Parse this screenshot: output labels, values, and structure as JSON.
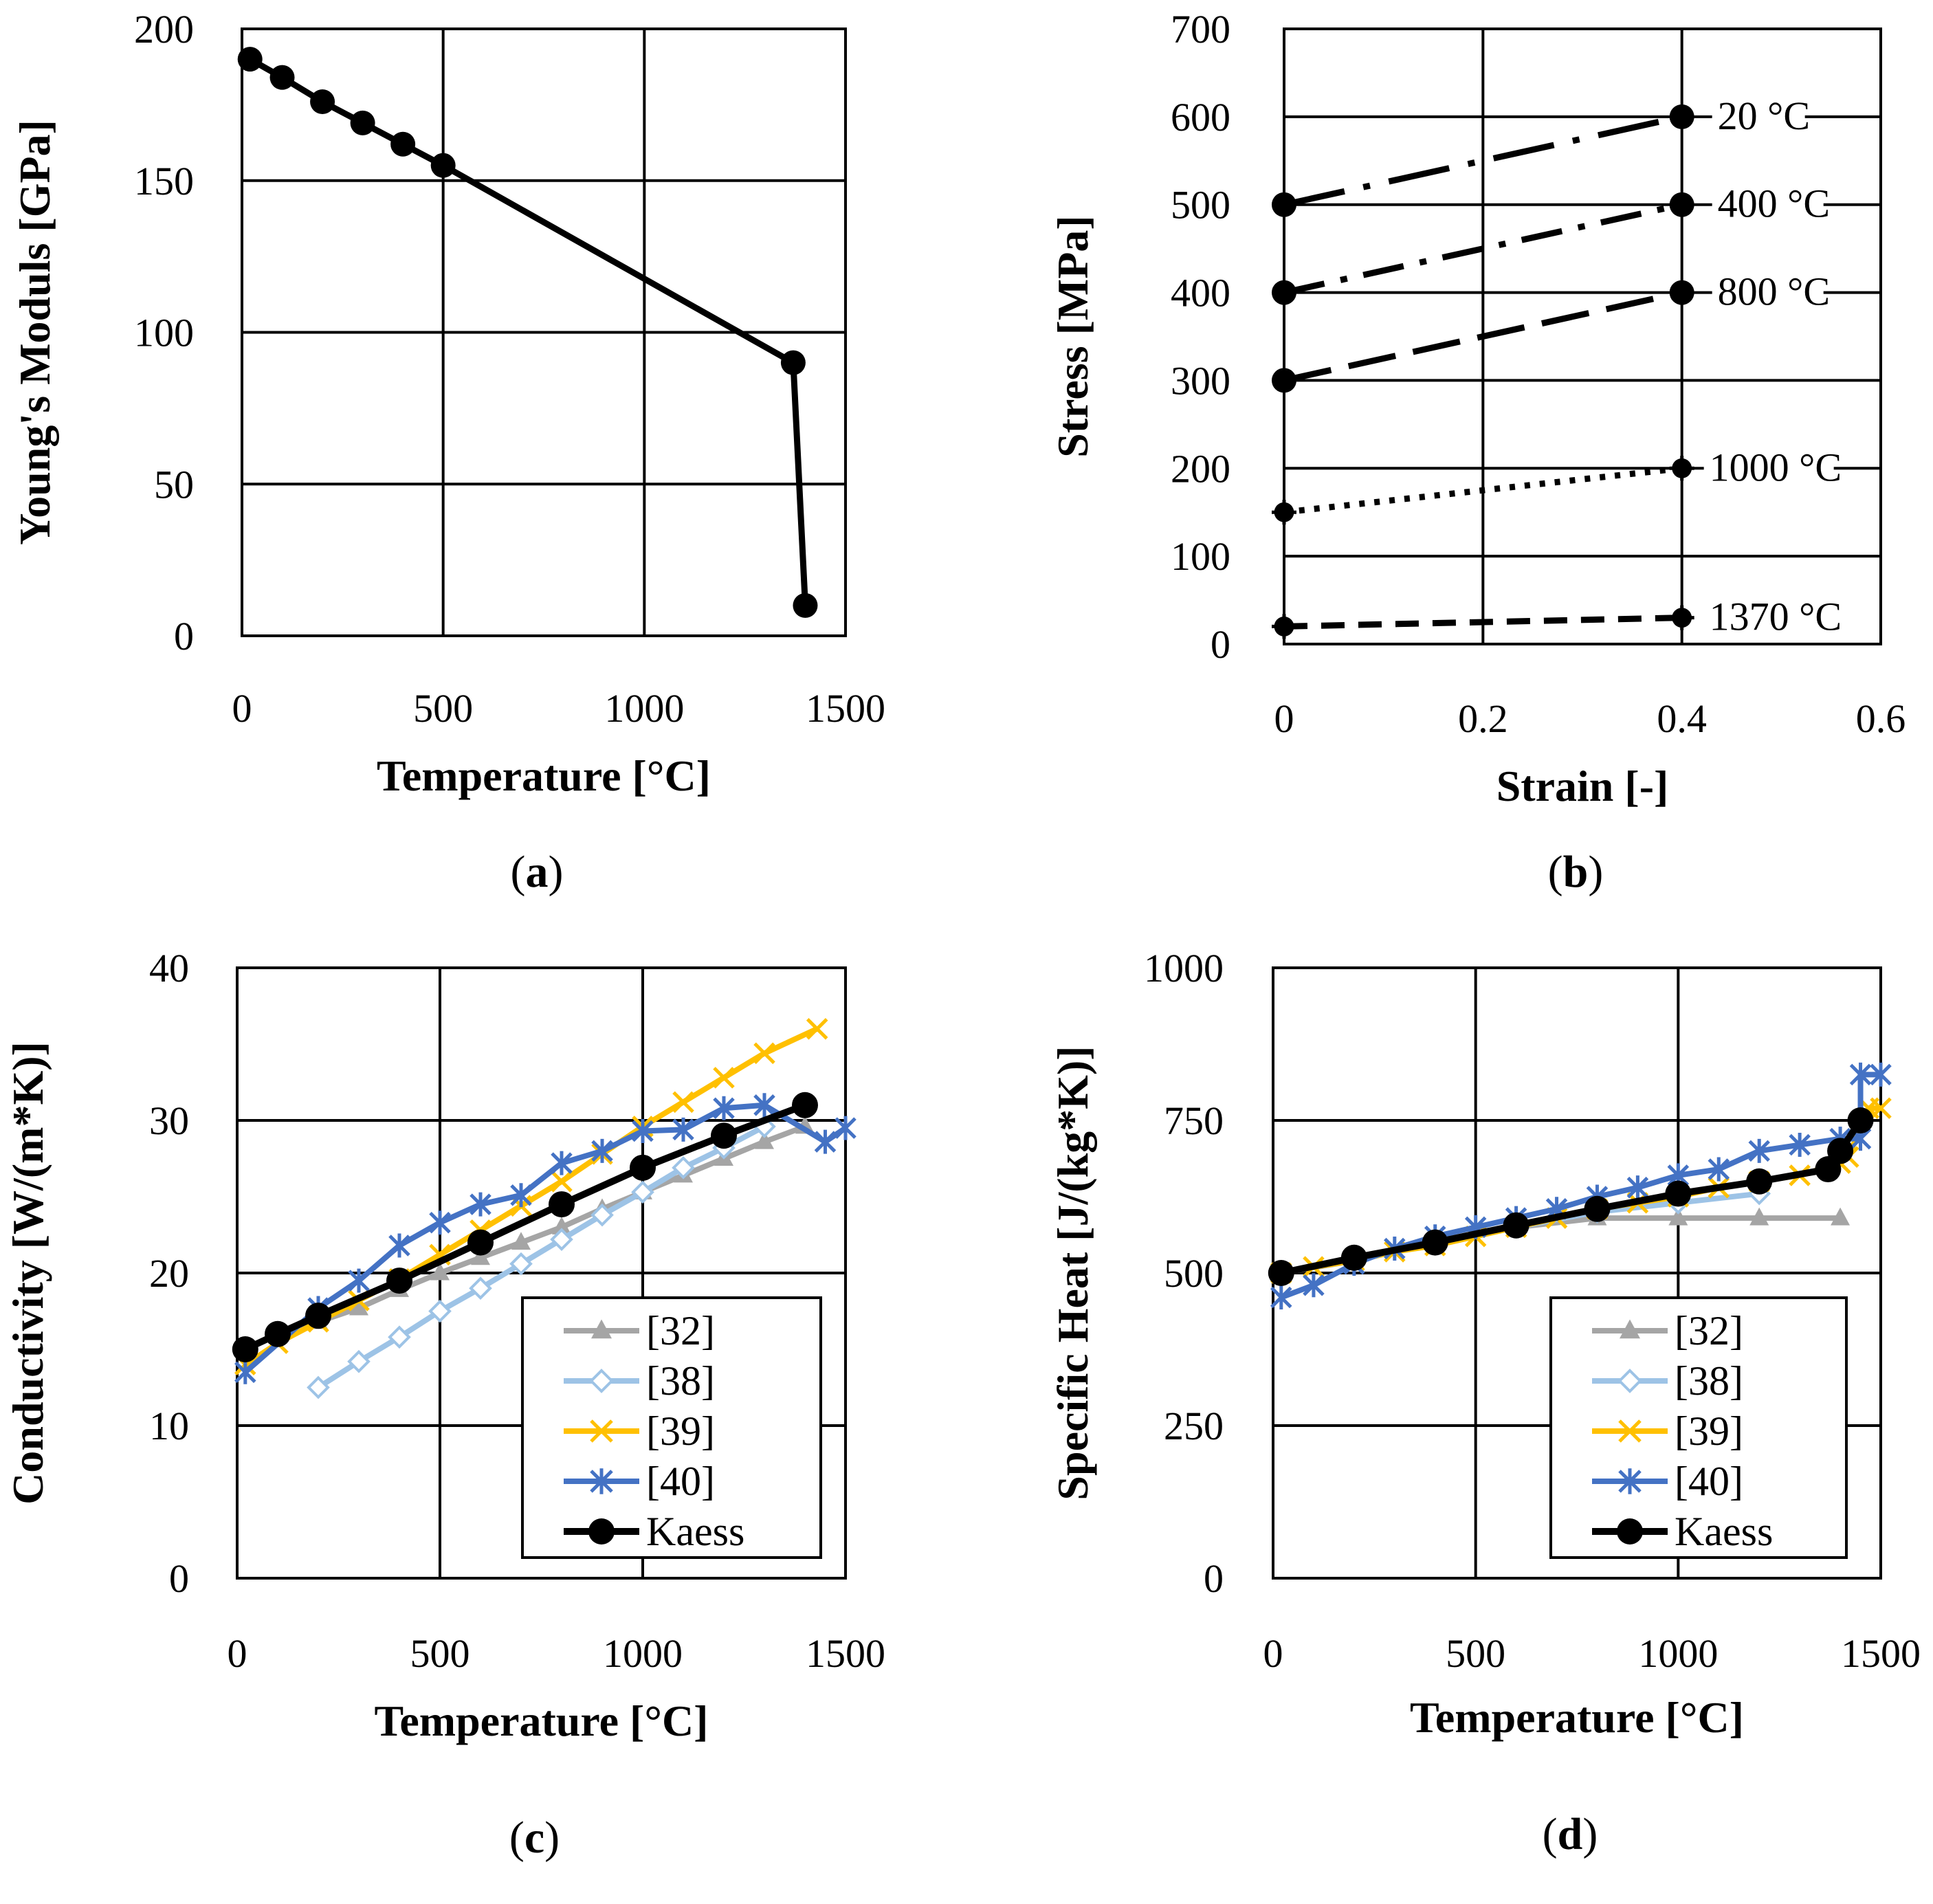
{
  "chart_data": [
    {
      "id": "a",
      "type": "line",
      "caption": "(a)",
      "caption_letter": "a",
      "xlabel": "Temperature [°C]",
      "ylabel": "Young's Moduls [GPa]",
      "xlim": [
        0,
        1500
      ],
      "ylim": [
        0,
        200
      ],
      "xticks": [
        0,
        500,
        1000,
        1500
      ],
      "yticks": [
        0,
        50,
        100,
        150,
        200
      ],
      "xtick_labels": [
        "0",
        "500",
        "1000",
        "1500"
      ],
      "ytick_labels": [
        "0",
        "50",
        "100",
        "150",
        "200"
      ],
      "grid": true,
      "legend_position": "none",
      "series": [
        {
          "name": "Young's modulus",
          "color": "#000000",
          "marker": "circle",
          "dash": "solid",
          "x": [
            20,
            100,
            200,
            300,
            400,
            500,
            1370,
            1400
          ],
          "y": [
            190,
            184,
            176,
            169,
            162,
            155,
            90,
            10
          ]
        }
      ]
    },
    {
      "id": "b",
      "type": "line",
      "caption": "(b)",
      "caption_letter": "b",
      "xlabel": "Strain [-]",
      "ylabel": "Stress [MPa]",
      "xlim": [
        0,
        0.6
      ],
      "ylim": [
        0,
        700
      ],
      "xticks": [
        0,
        0.2,
        0.4,
        0.6
      ],
      "yticks": [
        0,
        100,
        200,
        300,
        400,
        500,
        600,
        700
      ],
      "xtick_labels": [
        "0",
        "0.2",
        "0.4",
        "0.6"
      ],
      "ytick_labels": [
        "0",
        "100",
        "200",
        "300",
        "400",
        "500",
        "600",
        "700"
      ],
      "grid": true,
      "legend_position": "none",
      "series": [
        {
          "name": "20 °C",
          "label": "20 °C",
          "color": "#000000",
          "marker": "circle",
          "dash": "dashdot-long",
          "x": [
            0,
            0.4
          ],
          "y": [
            500,
            600
          ]
        },
        {
          "name": "400 °C",
          "label": "400 °C",
          "color": "#000000",
          "marker": "circle",
          "dash": "dashdot",
          "x": [
            0,
            0.4
          ],
          "y": [
            400,
            500
          ]
        },
        {
          "name": "800 °C",
          "label": "800 °C",
          "color": "#000000",
          "marker": "circle",
          "dash": "longdash",
          "x": [
            0,
            0.4
          ],
          "y": [
            300,
            400
          ]
        },
        {
          "name": "1000 °C",
          "label": "1000 °C",
          "color": "#000000",
          "marker": "cross",
          "dash": "dotted",
          "x": [
            0,
            0.4
          ],
          "y": [
            150,
            200
          ]
        },
        {
          "name": "1370 °C",
          "label": "1370 °C",
          "color": "#000000",
          "marker": "cross",
          "dash": "dashed",
          "x": [
            0,
            0.4
          ],
          "y": [
            20,
            30
          ]
        }
      ]
    },
    {
      "id": "c",
      "type": "line",
      "caption": "(c)",
      "caption_letter": "c",
      "xlabel": "Temperature [°C]",
      "ylabel": "Conductivity [W/(m*K)]",
      "xlim": [
        0,
        1500
      ],
      "ylim": [
        0,
        40
      ],
      "xticks": [
        0,
        500,
        1000,
        1500
      ],
      "yticks": [
        0,
        10,
        20,
        30,
        40
      ],
      "xtick_labels": [
        "0",
        "500",
        "1000",
        "1500"
      ],
      "ytick_labels": [
        "0",
        "10",
        "20",
        "30",
        "40"
      ],
      "grid": true,
      "legend_position": "bottom-right",
      "series": [
        {
          "name": "[32]",
          "color": "#A5A5A5",
          "marker": "triangle",
          "x": [
            20,
            100,
            200,
            300,
            400,
            500,
            600,
            700,
            800,
            900,
            1000,
            1100,
            1200,
            1300,
            1400
          ],
          "y": [
            15,
            16,
            16.8,
            17.7,
            18.9,
            20,
            21,
            22,
            23,
            24.2,
            25.3,
            26.4,
            27.5,
            28.6,
            29.6
          ]
        },
        {
          "name": "[38]",
          "color": "#9DC3E6",
          "marker": "diamond",
          "x": [
            200,
            300,
            400,
            500,
            600,
            700,
            800,
            900,
            1000,
            1100,
            1200,
            1300
          ],
          "y": [
            12.5,
            14.2,
            15.8,
            17.5,
            19,
            20.6,
            22.2,
            23.8,
            25.3,
            26.9,
            28.2,
            29.6
          ]
        },
        {
          "name": "[39]",
          "color": "#FFC000",
          "marker": "x",
          "x": [
            20,
            100,
            200,
            300,
            400,
            500,
            600,
            700,
            800,
            900,
            1000,
            1100,
            1200,
            1300,
            1430
          ],
          "y": [
            14,
            15.4,
            16.8,
            18.2,
            19.6,
            21.2,
            22.8,
            24.4,
            26,
            27.8,
            29.6,
            31.2,
            32.8,
            34.4,
            36
          ]
        },
        {
          "name": "[40]",
          "color": "#4472C4",
          "marker": "asterisk",
          "x": [
            20,
            200,
            300,
            400,
            500,
            600,
            700,
            800,
            900,
            1000,
            1100,
            1200,
            1300,
            1450,
            1500
          ],
          "y": [
            13.5,
            17.7,
            19.5,
            21.8,
            23.3,
            24.5,
            25.1,
            27.2,
            28,
            29.3,
            29.4,
            30.8,
            31,
            28.6,
            29.5
          ]
        },
        {
          "name": "Kaess",
          "color": "#000000",
          "marker": "circle",
          "x": [
            20,
            100,
            200,
            400,
            600,
            800,
            1000,
            1200,
            1400
          ],
          "y": [
            15,
            16,
            17.2,
            19.5,
            22,
            24.5,
            26.9,
            29,
            31
          ]
        }
      ]
    },
    {
      "id": "d",
      "type": "line",
      "caption": "(d)",
      "caption_letter": "d",
      "xlabel": "Temperature [°C]",
      "ylabel": "Specific Heat [J/(kg*K)]",
      "xlim": [
        0,
        1500
      ],
      "ylim": [
        0,
        1000
      ],
      "xticks": [
        0,
        500,
        1000,
        1500
      ],
      "yticks": [
        0,
        250,
        500,
        750,
        1000
      ],
      "xtick_labels": [
        "0",
        "500",
        "1000",
        "1500"
      ],
      "ytick_labels": [
        "0",
        "250",
        "500",
        "750",
        "1000"
      ],
      "grid": true,
      "legend_position": "bottom-right",
      "series": [
        {
          "name": "[32]",
          "color": "#A5A5A5",
          "marker": "triangle",
          "x": [
            20,
            200,
            400,
            600,
            800,
            1000,
            1200,
            1400
          ],
          "y": [
            500,
            520,
            550,
            575,
            590,
            590,
            590,
            590
          ]
        },
        {
          "name": "[38]",
          "color": "#9DC3E6",
          "marker": "diamond",
          "x": [
            200,
            400,
            600,
            800,
            1000,
            1200
          ],
          "y": [
            520,
            550,
            575,
            600,
            615,
            630
          ]
        },
        {
          "name": "[39]",
          "color": "#FFC000",
          "marker": "x",
          "x": [
            20,
            100,
            200,
            300,
            400,
            500,
            600,
            700,
            800,
            900,
            1000,
            1100,
            1200,
            1300,
            1400,
            1420,
            1470,
            1500
          ],
          "y": [
            500,
            510,
            520,
            535,
            545,
            560,
            575,
            590,
            605,
            615,
            625,
            640,
            650,
            660,
            680,
            690,
            770,
            770
          ]
        },
        {
          "name": "[40]",
          "color": "#4472C4",
          "marker": "asterisk",
          "x": [
            20,
            100,
            200,
            300,
            400,
            500,
            600,
            700,
            800,
            900,
            1000,
            1100,
            1200,
            1300,
            1400,
            1450,
            1450,
            1500
          ],
          "y": [
            460,
            480,
            515,
            540,
            560,
            575,
            590,
            605,
            625,
            640,
            660,
            670,
            700,
            710,
            720,
            720,
            825,
            825
          ]
        },
        {
          "name": "Kaess",
          "color": "#000000",
          "marker": "circle",
          "x": [
            20,
            200,
            400,
            600,
            800,
            1000,
            1200,
            1370,
            1400,
            1450
          ],
          "y": [
            500,
            525,
            550,
            578,
            605,
            630,
            650,
            670,
            700,
            750
          ]
        }
      ]
    }
  ]
}
